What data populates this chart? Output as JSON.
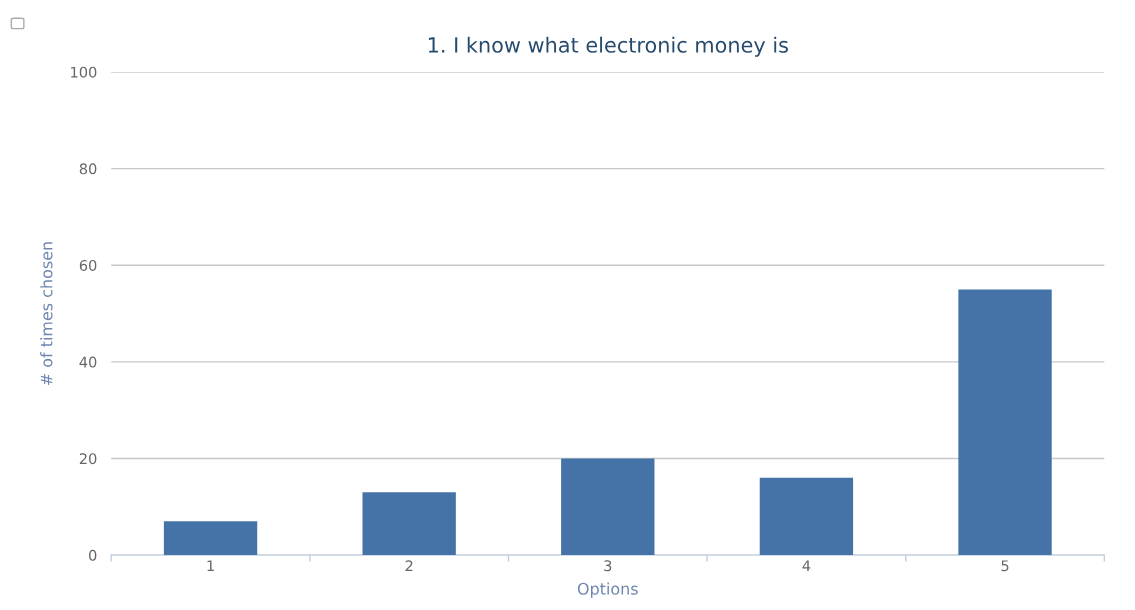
{
  "chart_data": {
    "type": "bar",
    "title": "1. I know what electronic money is",
    "xlabel": "Options",
    "ylabel": "# of times chosen",
    "categories": [
      "1",
      "2",
      "3",
      "4",
      "5"
    ],
    "values": [
      7,
      13,
      20,
      16,
      55
    ],
    "color": "#4572a7",
    "ylim": [
      0,
      100
    ],
    "yticks": [
      0,
      20,
      40,
      60,
      80,
      100
    ],
    "grid": "y",
    "legend": false
  }
}
